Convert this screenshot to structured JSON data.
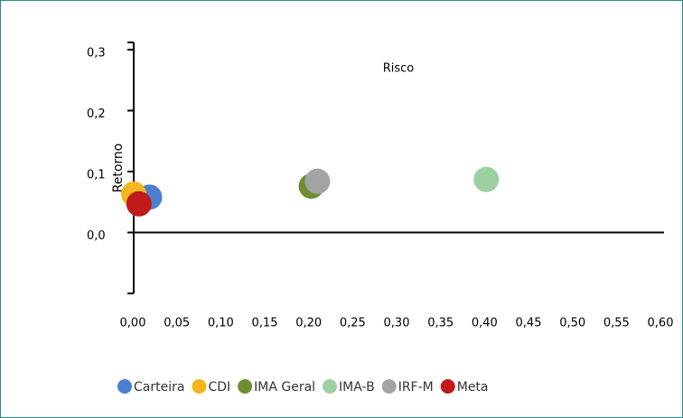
{
  "chart_data": {
    "type": "scatter",
    "xlabel": "Risco",
    "ylabel": "Retorno",
    "xlim": [
      0,
      0.6
    ],
    "ylim": [
      -0.1,
      0.3
    ],
    "xticks": [
      {
        "value": 0,
        "label": "0,00"
      },
      {
        "value": 0.05,
        "label": "0,05"
      },
      {
        "value": 0.1,
        "label": "0,10"
      },
      {
        "value": 0.15,
        "label": "0,15"
      },
      {
        "value": 0.2,
        "label": "0,20"
      },
      {
        "value": 0.25,
        "label": "0,25"
      },
      {
        "value": 0.3,
        "label": "0,30"
      },
      {
        "value": 0.35,
        "label": "0,35"
      },
      {
        "value": 0.4,
        "label": "0,40"
      },
      {
        "value": 0.45,
        "label": "0,45"
      },
      {
        "value": 0.5,
        "label": "0,50"
      },
      {
        "value": 0.55,
        "label": "0,55"
      },
      {
        "value": 0.6,
        "label": "0,60"
      }
    ],
    "yticks": [
      {
        "value": 0,
        "label": "0,0"
      },
      {
        "value": 0.1,
        "label": "0,1"
      },
      {
        "value": 0.2,
        "label": "0,2"
      },
      {
        "value": 0.3,
        "label": "0,3"
      }
    ],
    "legend": "bottom",
    "series": [
      {
        "name": "Carteira",
        "color": "#4a7fd0",
        "x": [
          0.019
        ],
        "y": [
          0.058
        ]
      },
      {
        "name": "CDI",
        "color": "#f2b71f",
        "x": [
          0.001
        ],
        "y": [
          0.063
        ]
      },
      {
        "name": "IMA Geral",
        "color": "#6f8d31",
        "x": [
          0.203
        ],
        "y": [
          0.076
        ]
      },
      {
        "name": "IMA-B",
        "color": "#9dd0a0",
        "x": [
          0.402
        ],
        "y": [
          0.087
        ]
      },
      {
        "name": "IRF-M",
        "color": "#a3a3a3",
        "x": [
          0.21
        ],
        "y": [
          0.084
        ]
      },
      {
        "name": "Meta",
        "color": "#c2191b",
        "x": [
          0.007
        ],
        "y": [
          0.047
        ]
      }
    ]
  }
}
